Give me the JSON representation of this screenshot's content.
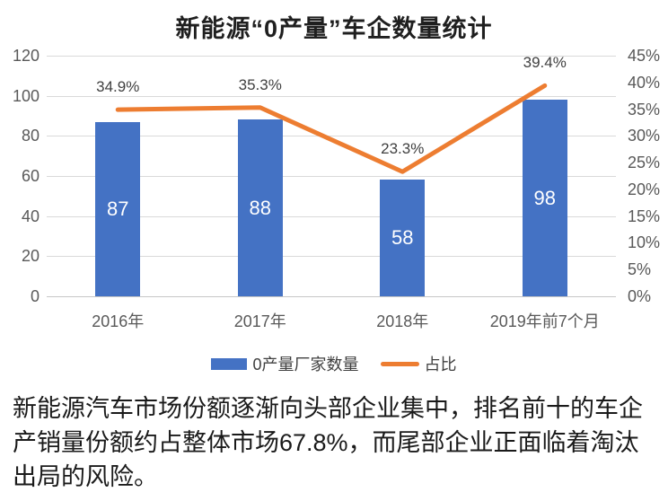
{
  "chart_data": {
    "type": "bar+line",
    "title": "新能源“0产量”车企数量统计",
    "categories": [
      "2016年",
      "2017年",
      "2018年",
      "2019年前7个月"
    ],
    "series": [
      {
        "name": "0产量厂家数量",
        "type": "bar",
        "axis": "left",
        "color": "#4472C4",
        "values": [
          87,
          88,
          58,
          98
        ],
        "value_labels": [
          "87",
          "88",
          "58",
          "98"
        ]
      },
      {
        "name": "占比",
        "type": "line",
        "axis": "right",
        "color": "#ED7D31",
        "values": [
          34.9,
          35.3,
          23.3,
          39.4
        ],
        "value_labels": [
          "34.9%",
          "35.3%",
          "23.3%",
          "39.4%"
        ]
      }
    ],
    "left_axis": {
      "min": 0,
      "max": 120,
      "step": 20,
      "ticks": [
        "0",
        "20",
        "40",
        "60",
        "80",
        "100",
        "120"
      ]
    },
    "right_axis": {
      "min": 0,
      "max": 45,
      "step": 5,
      "ticks": [
        "0%",
        "5%",
        "10%",
        "15%",
        "20%",
        "25%",
        "30%",
        "35%",
        "40%",
        "45%"
      ]
    },
    "grid": true,
    "legend_position": "bottom",
    "colors": {
      "bar": "#4472C4",
      "line": "#ED7D31",
      "gridline": "#d9d9d9",
      "axis_text": "#595959",
      "bar_label_text": "#ffffff"
    }
  },
  "caption": {
    "lines": [
      "新能源汽车市场份额逐渐向头部企业集中，排名前十的车企",
      "产销量份额约占整体市场67.8%，而尾部企业正面临着淘汰",
      "出局的风险。"
    ]
  }
}
